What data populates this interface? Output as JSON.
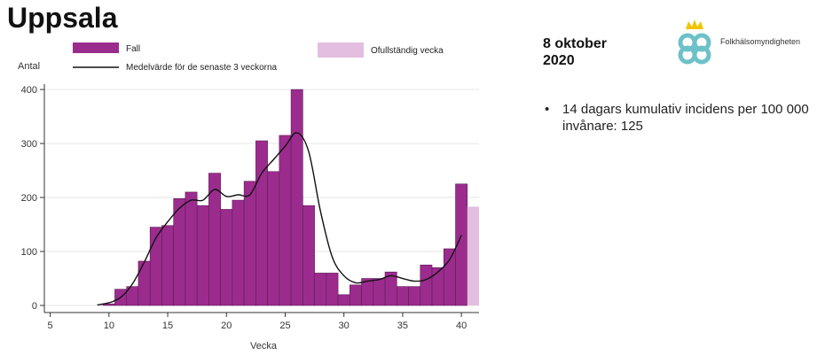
{
  "slide": {
    "title": "Uppsala",
    "date": "8 oktober 2020",
    "logo_text": "Folkhälsomyndigheten",
    "bullets": [
      "14 dagars kumulativ incidens per 100 000 invånare: 125"
    ]
  },
  "chart_data": {
    "type": "bar",
    "title": "",
    "xlabel": "Vecka",
    "ylabel": "Antal",
    "xlim": [
      4.5,
      41.5
    ],
    "ylim": [
      0,
      410
    ],
    "x_ticks": [
      5,
      10,
      15,
      20,
      25,
      30,
      35,
      40
    ],
    "y_ticks": [
      0,
      100,
      200,
      300,
      400
    ],
    "grid": true,
    "legend_placement": "top",
    "colors": {
      "bars": "#9B2C8E",
      "incomplete": "#E3BEE0",
      "line": "#111111",
      "grid": "#e6e6e6"
    },
    "series": [
      {
        "name": "Fall",
        "x": [
          9,
          10,
          11,
          12,
          13,
          14,
          15,
          16,
          17,
          18,
          19,
          20,
          21,
          22,
          23,
          24,
          25,
          26,
          27,
          28,
          29,
          30,
          31,
          32,
          33,
          34,
          35,
          36,
          37,
          38,
          39,
          40
        ],
        "values": [
          0,
          3,
          30,
          35,
          82,
          145,
          148,
          198,
          210,
          185,
          245,
          178,
          195,
          230,
          305,
          248,
          315,
          400,
          185,
          60,
          60,
          20,
          38,
          50,
          50,
          62,
          35,
          35,
          75,
          70,
          105,
          225
        ]
      },
      {
        "name": "Ofullständig vecka",
        "x": [
          41
        ],
        "values": [
          183
        ]
      },
      {
        "name": "Medelvärde för de senaste 3 veckorna",
        "type": "line",
        "x": [
          9,
          10,
          11,
          12,
          13,
          14,
          15,
          16,
          17,
          18,
          19,
          20,
          21,
          22,
          23,
          24,
          25,
          26,
          27,
          28,
          29,
          30,
          31,
          32,
          33,
          34,
          35,
          36,
          37,
          38,
          39,
          40
        ],
        "values": [
          1,
          5,
          15,
          40,
          80,
          125,
          155,
          180,
          195,
          195,
          215,
          202,
          205,
          205,
          245,
          270,
          295,
          320,
          285,
          175,
          90,
          55,
          42,
          45,
          48,
          55,
          50,
          45,
          48,
          62,
          85,
          130
        ]
      }
    ]
  }
}
